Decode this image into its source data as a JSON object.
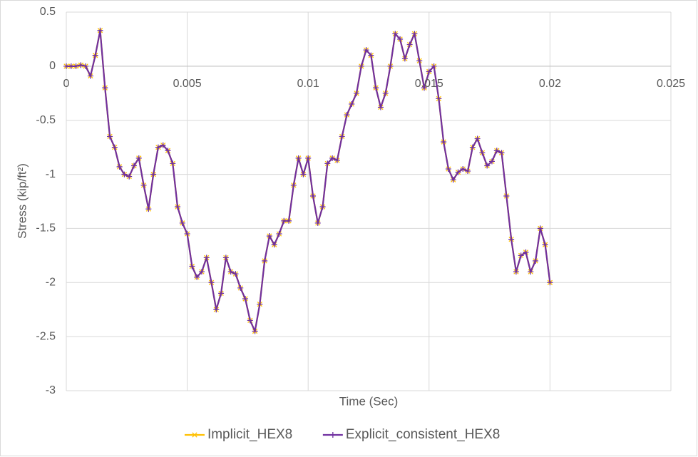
{
  "chart_data": {
    "type": "line",
    "xlabel": "Time (Sec)",
    "ylabel": "Stress (kip/ft²)",
    "x": [
      0,
      0.0002,
      0.0004,
      0.0006,
      0.0008,
      0.001,
      0.0012,
      0.0014,
      0.0016,
      0.0018,
      0.002,
      0.0022,
      0.0024,
      0.0026,
      0.0028,
      0.003,
      0.0032,
      0.0034,
      0.0036,
      0.0038,
      0.004,
      0.0042,
      0.0044,
      0.0046,
      0.0048,
      0.005,
      0.0052,
      0.0054,
      0.0056,
      0.0058,
      0.006,
      0.0062,
      0.0064,
      0.0066,
      0.0068,
      0.007,
      0.0072,
      0.0074,
      0.0076,
      0.0078,
      0.008,
      0.0082,
      0.0084,
      0.0086,
      0.0088,
      0.009,
      0.0092,
      0.0094,
      0.0096,
      0.0098,
      0.01,
      0.0102,
      0.0104,
      0.0106,
      0.0108,
      0.011,
      0.0112,
      0.0114,
      0.0116,
      0.0118,
      0.012,
      0.0122,
      0.0124,
      0.0126,
      0.0128,
      0.013,
      0.0132,
      0.0134,
      0.0136,
      0.0138,
      0.014,
      0.0142,
      0.0144,
      0.0146,
      0.0148,
      0.015,
      0.0152,
      0.0154,
      0.0156,
      0.0158,
      0.016,
      0.0162,
      0.0164,
      0.0166,
      0.0168,
      0.017,
      0.0172,
      0.0174,
      0.0176,
      0.0178,
      0.018,
      0.0182,
      0.0184,
      0.0186,
      0.0188,
      0.019,
      0.0192,
      0.0194,
      0.0196,
      0.0198,
      0.02
    ],
    "series": [
      {
        "name": "Implicit_HEX8",
        "color": "#FFC000",
        "marker": "x",
        "values": [
          0,
          0,
          0,
          0.01,
          0,
          -0.09,
          0.1,
          0.33,
          -0.2,
          -0.65,
          -0.75,
          -0.93,
          -1.0,
          -1.02,
          -0.92,
          -0.85,
          -1.1,
          -1.32,
          -1.0,
          -0.75,
          -0.73,
          -0.78,
          -0.9,
          -1.3,
          -1.45,
          -1.55,
          -1.85,
          -1.95,
          -1.9,
          -1.77,
          -2.0,
          -2.25,
          -2.1,
          -1.77,
          -1.9,
          -1.92,
          -2.05,
          -2.15,
          -2.35,
          -2.45,
          -2.2,
          -1.8,
          -1.57,
          -1.65,
          -1.55,
          -1.43,
          -1.43,
          -1.1,
          -0.85,
          -1.0,
          -0.85,
          -1.2,
          -1.45,
          -1.3,
          -0.9,
          -0.85,
          -0.87,
          -0.65,
          -0.45,
          -0.35,
          -0.25,
          0,
          0.15,
          0.1,
          -0.2,
          -0.38,
          -0.25,
          0,
          0.3,
          0.25,
          0.07,
          0.2,
          0.3,
          0.05,
          -0.2,
          -0.05,
          0,
          -0.3,
          -0.7,
          -0.95,
          -1.05,
          -0.98,
          -0.95,
          -0.97,
          -0.75,
          -0.67,
          -0.8,
          -0.92,
          -0.88,
          -0.78,
          -0.8,
          -1.2,
          -1.6,
          -1.9,
          -1.75,
          -1.72,
          -1.9,
          -1.8,
          -1.5,
          -1.65,
          -2.0
        ]
      },
      {
        "name": "Explicit_consistent_HEX8",
        "color": "#7030A0",
        "marker": "+",
        "values": [
          0,
          0,
          0,
          0.01,
          0,
          -0.09,
          0.1,
          0.33,
          -0.2,
          -0.65,
          -0.75,
          -0.93,
          -1.0,
          -1.02,
          -0.92,
          -0.85,
          -1.1,
          -1.32,
          -1.0,
          -0.75,
          -0.73,
          -0.78,
          -0.9,
          -1.3,
          -1.45,
          -1.55,
          -1.85,
          -1.95,
          -1.9,
          -1.77,
          -2.0,
          -2.25,
          -2.1,
          -1.77,
          -1.9,
          -1.92,
          -2.05,
          -2.15,
          -2.35,
          -2.45,
          -2.2,
          -1.8,
          -1.57,
          -1.65,
          -1.55,
          -1.43,
          -1.43,
          -1.1,
          -0.85,
          -1.0,
          -0.85,
          -1.2,
          -1.45,
          -1.3,
          -0.9,
          -0.85,
          -0.87,
          -0.65,
          -0.45,
          -0.35,
          -0.25,
          0,
          0.15,
          0.1,
          -0.2,
          -0.38,
          -0.25,
          0,
          0.3,
          0.25,
          0.07,
          0.2,
          0.3,
          0.05,
          -0.2,
          -0.05,
          0,
          -0.3,
          -0.7,
          -0.95,
          -1.05,
          -0.98,
          -0.95,
          -0.97,
          -0.75,
          -0.67,
          -0.8,
          -0.92,
          -0.88,
          -0.78,
          -0.8,
          -1.2,
          -1.6,
          -1.9,
          -1.75,
          -1.72,
          -1.9,
          -1.8,
          -1.5,
          -1.65,
          -2.0
        ]
      }
    ],
    "xlim": [
      0,
      0.025
    ],
    "xticks": [
      0,
      0.005,
      0.01,
      0.015,
      0.02,
      0.025
    ],
    "ylim": [
      -3,
      0.5
    ],
    "yticks": [
      0.5,
      0,
      -0.5,
      -1,
      -1.5,
      -2,
      -2.5,
      -3
    ],
    "grid": true,
    "legend": "bottom"
  }
}
